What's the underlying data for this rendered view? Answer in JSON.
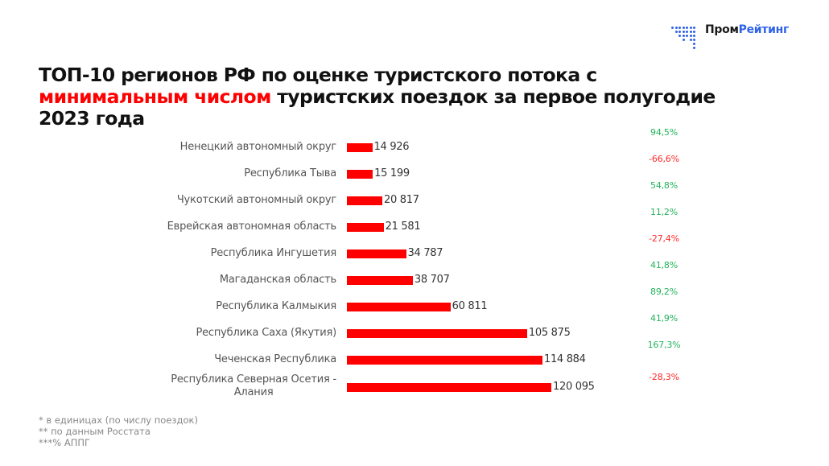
{
  "logo": {
    "part1": "Пром",
    "part2": "Рейтинг",
    "brand_color": "#2f62e8"
  },
  "title": {
    "line1": "ТОП-10 регионов РФ по оценке туристского потока с",
    "highlight": "минимальным числом",
    "line2_rest": " туристских поездок за первое полугодие",
    "line3": "2023 года"
  },
  "colors": {
    "bar": "#ff0000",
    "positive": "#22b35a",
    "negative": "#ff2a2a"
  },
  "chart_data": {
    "type": "bar",
    "orientation": "horizontal",
    "title": "ТОП-10 регионов РФ по оценке туристского потока с минимальным числом туристских поездок за первое полугодие 2023 года",
    "xlabel": "",
    "ylabel": "",
    "grid": false,
    "categories": [
      "Ненецкий автономный округ",
      "Республика Тыва",
      "Чукотский автономный округ",
      "Еврейская автономная область",
      "Республика Ингушетия",
      "Магаданская область",
      "Республика Калмыкия",
      "Республика Саха (Якутия)",
      "Чеченская Республика",
      "Республика Северная Осетия - Алания"
    ],
    "values": [
      14926,
      15199,
      20817,
      21581,
      34787,
      38707,
      60811,
      105875,
      114884,
      120095
    ],
    "value_labels": [
      "14 926",
      "15 199",
      "20 817",
      "21 581",
      "34 787",
      "38 707",
      "60 811",
      "105 875",
      "114 884",
      "120 095"
    ],
    "change_pct_labels": [
      "94,5%",
      "-66,6%",
      "54,8%",
      "11,2%",
      "-27,4%",
      "41,8%",
      "89,2%",
      "41,9%",
      "167,3%",
      "-28,3%"
    ],
    "change_pct": [
      94.5,
      -66.6,
      54.8,
      11.2,
      -27.4,
      41.8,
      89.2,
      41.9,
      167.3,
      -28.3
    ]
  },
  "rows": [
    {
      "label": "Ненецкий автономный округ",
      "value": "14 926",
      "pct": "94,5%"
    },
    {
      "label": "Республика Тыва",
      "value": "15 199",
      "pct": "-66,6%"
    },
    {
      "label": "Чукотский автономный округ",
      "value": "20 817",
      "pct": "54,8%"
    },
    {
      "label": "Еврейская автономная область",
      "value": "21 581",
      "pct": "11,2%"
    },
    {
      "label": "Республика Ингушетия",
      "value": "34 787",
      "pct": "-27,4%"
    },
    {
      "label": "Магаданская область",
      "value": "38 707",
      "pct": "41,8%"
    },
    {
      "label": "Республика Калмыкия",
      "value": "60 811",
      "pct": "89,2%"
    },
    {
      "label": "Республика Саха (Якутия)",
      "value": "105 875",
      "pct": "41,9%"
    },
    {
      "label": "Чеченская Республика",
      "value": "114 884",
      "pct": "167,3%"
    },
    {
      "label": "Республика Северная Осетия -",
      "label2": "Алания",
      "value": "120 095",
      "pct": "-28,3%"
    }
  ],
  "footnotes": [
    "* в единицах (по числу поездок)",
    "** по данным Росстата",
    "***% АППГ"
  ]
}
